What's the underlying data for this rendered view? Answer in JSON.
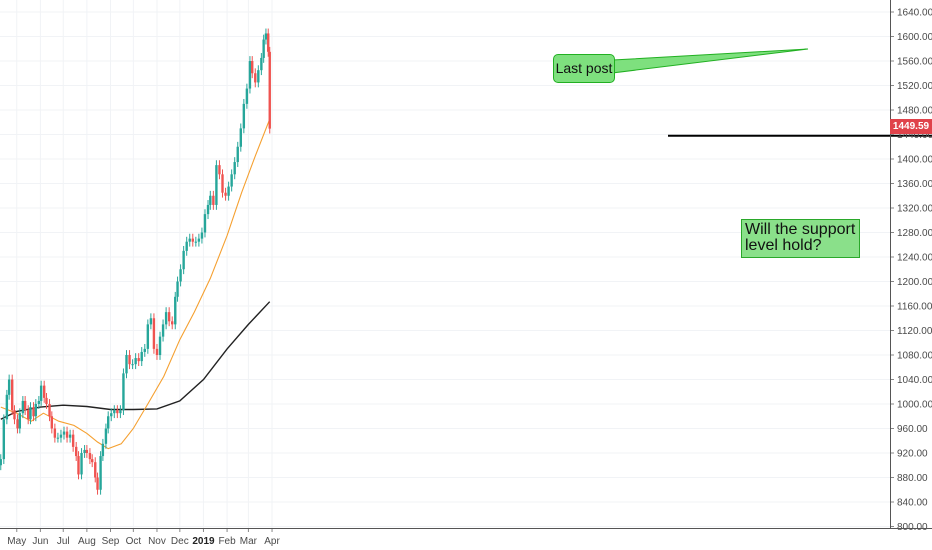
{
  "chart_data": {
    "type": "candlestick",
    "x_ticks": [
      {
        "label": "May",
        "date": "2018-05-01"
      },
      {
        "label": "Jun",
        "date": "2018-06-01"
      },
      {
        "label": "Jul",
        "date": "2018-07-01"
      },
      {
        "label": "Aug",
        "date": "2018-08-01"
      },
      {
        "label": "Sep",
        "date": "2018-09-01"
      },
      {
        "label": "Oct",
        "date": "2018-10-01"
      },
      {
        "label": "Nov",
        "date": "2018-11-01"
      },
      {
        "label": "Dec",
        "date": "2018-12-01"
      },
      {
        "label": "2019",
        "date": "2019-01-01",
        "bold": true
      },
      {
        "label": "Feb",
        "date": "2019-02-01"
      },
      {
        "label": "Mar",
        "date": "2019-03-01"
      },
      {
        "label": "Apr",
        "date": "2019-04-01"
      }
    ],
    "y_ticks": [
      "800.00",
      "840.00",
      "880.00",
      "920.00",
      "960.00",
      "1000.00",
      "1040.00",
      "1080.00",
      "1120.00",
      "1160.00",
      "1200.00",
      "1240.00",
      "1280.00",
      "1320.00",
      "1360.00",
      "1400.00",
      "1440.00",
      "1480.00",
      "1520.00",
      "1560.00",
      "1600.00",
      "1640.00"
    ],
    "ylim": [
      793,
      1652
    ],
    "last_price_label": "1449.59",
    "last_price": 1449.59,
    "support_level": 1438,
    "series": [
      {
        "name": "",
        "kind": "close",
        "points": [
          [
            "2018-04-10",
            910
          ],
          [
            "2018-04-14",
            975
          ],
          [
            "2018-04-18",
            1015
          ],
          [
            "2018-04-21",
            1040
          ],
          [
            "2018-04-25",
            990
          ],
          [
            "2018-04-28",
            975
          ],
          [
            "2018-05-02",
            960
          ],
          [
            "2018-05-05",
            985
          ],
          [
            "2018-05-09",
            1005
          ],
          [
            "2018-05-12",
            990
          ],
          [
            "2018-05-16",
            975
          ],
          [
            "2018-05-19",
            995
          ],
          [
            "2018-05-23",
            980
          ],
          [
            "2018-05-26",
            1000
          ],
          [
            "2018-05-30",
            1005
          ],
          [
            "2018-06-02",
            1030
          ],
          [
            "2018-06-06",
            1010
          ],
          [
            "2018-06-09",
            1000
          ],
          [
            "2018-06-13",
            980
          ],
          [
            "2018-06-16",
            960
          ],
          [
            "2018-06-20",
            945
          ],
          [
            "2018-06-24",
            945
          ],
          [
            "2018-06-28",
            950
          ],
          [
            "2018-07-02",
            955
          ],
          [
            "2018-07-06",
            945
          ],
          [
            "2018-07-10",
            950
          ],
          [
            "2018-07-14",
            930
          ],
          [
            "2018-07-18",
            915
          ],
          [
            "2018-07-21",
            885
          ],
          [
            "2018-07-25",
            920
          ],
          [
            "2018-07-29",
            925
          ],
          [
            "2018-08-01",
            920
          ],
          [
            "2018-08-05",
            910
          ],
          [
            "2018-08-08",
            905
          ],
          [
            "2018-08-12",
            880
          ],
          [
            "2018-08-15",
            860
          ],
          [
            "2018-08-19",
            915
          ],
          [
            "2018-08-22",
            935
          ],
          [
            "2018-08-26",
            960
          ],
          [
            "2018-08-29",
            980
          ],
          [
            "2018-09-02",
            985
          ],
          [
            "2018-09-06",
            990
          ],
          [
            "2018-09-10",
            985
          ],
          [
            "2018-09-14",
            990
          ],
          [
            "2018-09-18",
            1050
          ],
          [
            "2018-09-22",
            1080
          ],
          [
            "2018-09-26",
            1065
          ],
          [
            "2018-09-30",
            1065
          ],
          [
            "2018-10-04",
            1075
          ],
          [
            "2018-10-08",
            1070
          ],
          [
            "2018-10-12",
            1085
          ],
          [
            "2018-10-16",
            1090
          ],
          [
            "2018-10-20",
            1130
          ],
          [
            "2018-10-24",
            1140
          ],
          [
            "2018-10-28",
            1090
          ],
          [
            "2018-11-01",
            1080
          ],
          [
            "2018-11-05",
            1110
          ],
          [
            "2018-11-09",
            1130
          ],
          [
            "2018-11-13",
            1150
          ],
          [
            "2018-11-17",
            1135
          ],
          [
            "2018-11-21",
            1130
          ],
          [
            "2018-11-25",
            1175
          ],
          [
            "2018-11-28",
            1200
          ],
          [
            "2018-12-02",
            1220
          ],
          [
            "2018-12-06",
            1250
          ],
          [
            "2018-12-10",
            1265
          ],
          [
            "2018-12-14",
            1270
          ],
          [
            "2018-12-18",
            1265
          ],
          [
            "2018-12-22",
            1265
          ],
          [
            "2018-12-26",
            1270
          ],
          [
            "2018-12-30",
            1280
          ],
          [
            "2019-01-03",
            1310
          ],
          [
            "2019-01-07",
            1325
          ],
          [
            "2019-01-10",
            1340
          ],
          [
            "2019-01-14",
            1325
          ],
          [
            "2019-01-18",
            1390
          ],
          [
            "2019-01-22",
            1375
          ],
          [
            "2019-01-26",
            1345
          ],
          [
            "2019-01-30",
            1340
          ],
          [
            "2019-02-03",
            1355
          ],
          [
            "2019-02-07",
            1375
          ],
          [
            "2019-02-11",
            1395
          ],
          [
            "2019-02-15",
            1420
          ],
          [
            "2019-02-19",
            1450
          ],
          [
            "2019-02-23",
            1490
          ],
          [
            "2019-02-27",
            1515
          ],
          [
            "2019-03-03",
            1560
          ],
          [
            "2019-03-06",
            1540
          ],
          [
            "2019-03-10",
            1525
          ],
          [
            "2019-03-14",
            1545
          ],
          [
            "2019-03-18",
            1565
          ],
          [
            "2019-03-21",
            1595
          ],
          [
            "2019-03-24",
            1605
          ],
          [
            "2019-03-27",
            1575
          ],
          [
            "2019-03-29",
            1449.59
          ]
        ]
      },
      {
        "name": "",
        "kind": "ma-short",
        "color": "#f5a030",
        "points": [
          [
            "2018-04-10",
            995
          ],
          [
            "2018-05-01",
            985
          ],
          [
            "2018-05-20",
            972
          ],
          [
            "2018-06-05",
            985
          ],
          [
            "2018-06-25",
            972
          ],
          [
            "2018-07-15",
            965
          ],
          [
            "2018-08-01",
            952
          ],
          [
            "2018-08-15",
            938
          ],
          [
            "2018-08-29",
            927
          ],
          [
            "2018-09-15",
            935
          ],
          [
            "2018-10-01",
            960
          ],
          [
            "2018-10-20",
            1000
          ],
          [
            "2018-11-10",
            1045
          ],
          [
            "2018-12-01",
            1105
          ],
          [
            "2018-12-20",
            1150
          ],
          [
            "2019-01-10",
            1205
          ],
          [
            "2019-02-01",
            1275
          ],
          [
            "2019-02-20",
            1345
          ],
          [
            "2019-03-10",
            1405
          ],
          [
            "2019-03-29",
            1465
          ]
        ]
      },
      {
        "name": "",
        "kind": "ma-long",
        "color": "#222222",
        "points": [
          [
            "2018-04-10",
            975
          ],
          [
            "2018-05-01",
            988
          ],
          [
            "2018-06-01",
            995
          ],
          [
            "2018-07-01",
            998
          ],
          [
            "2018-08-01",
            996
          ],
          [
            "2018-09-01",
            991
          ],
          [
            "2018-10-01",
            991
          ],
          [
            "2018-11-01",
            992
          ],
          [
            "2018-12-01",
            1005
          ],
          [
            "2019-01-01",
            1040
          ],
          [
            "2019-02-01",
            1090
          ],
          [
            "2019-03-01",
            1130
          ],
          [
            "2019-03-29",
            1167
          ]
        ]
      }
    ],
    "annotations": [
      {
        "text": "Last post"
      },
      {
        "text": "Will the support\nlevel hold?"
      }
    ]
  }
}
